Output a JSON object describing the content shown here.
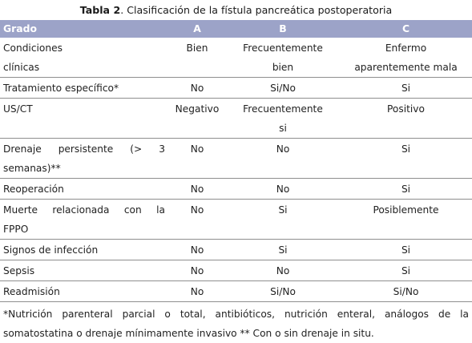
{
  "caption": {
    "label": "Tabla 2",
    "text": ". Clasificación de la fístula pancreática postoperatoria"
  },
  "table": {
    "headers": [
      "Grado",
      "A",
      "B",
      "C"
    ],
    "rows": [
      {
        "lines": [
          "Condiciones",
          "clínicas"
        ],
        "a": "Bien",
        "b": [
          "Frecuentemente",
          "bien"
        ],
        "c": [
          "Enfermo",
          "aparentemente mala"
        ]
      },
      {
        "lines": [
          "Tratamiento específico*"
        ],
        "a": "No",
        "b": [
          "Si/No"
        ],
        "c": [
          "Si"
        ]
      },
      {
        "lines": [
          "US/CT"
        ],
        "a": "Negativo",
        "b": [
          "Frecuentemente",
          "si"
        ],
        "c": [
          "Positivo"
        ]
      },
      {
        "lines": [
          "Drenaje persistente (> 3",
          "semanas)**"
        ],
        "a": "No",
        "b": [
          "No"
        ],
        "c": [
          "Si"
        ]
      },
      {
        "lines": [
          "Reoperación"
        ],
        "a": "No",
        "b": [
          "No"
        ],
        "c": [
          "Si"
        ]
      },
      {
        "lines": [
          "Muerte relacionada con la",
          "FPPO"
        ],
        "a": "No",
        "b": [
          "Si"
        ],
        "c": [
          "Posiblemente"
        ]
      },
      {
        "lines": [
          "Signos de infección"
        ],
        "a": "No",
        "b": [
          "Si"
        ],
        "c": [
          "Si"
        ]
      },
      {
        "lines": [
          "Sepsis"
        ],
        "a": "No",
        "b": [
          "No"
        ],
        "c": [
          "Si"
        ]
      },
      {
        "lines": [
          "Readmisión"
        ],
        "a": "No",
        "b": [
          "Si/No"
        ],
        "c": [
          "Si/No"
        ]
      }
    ]
  },
  "footnote": {
    "line1": "*Nutrición parenteral parcial o total, antibióticos, nutrición enteral, análogos de la",
    "line2": "somatostatina o drenaje mínimamente invasivo ** Con o sin drenaje in situ."
  }
}
